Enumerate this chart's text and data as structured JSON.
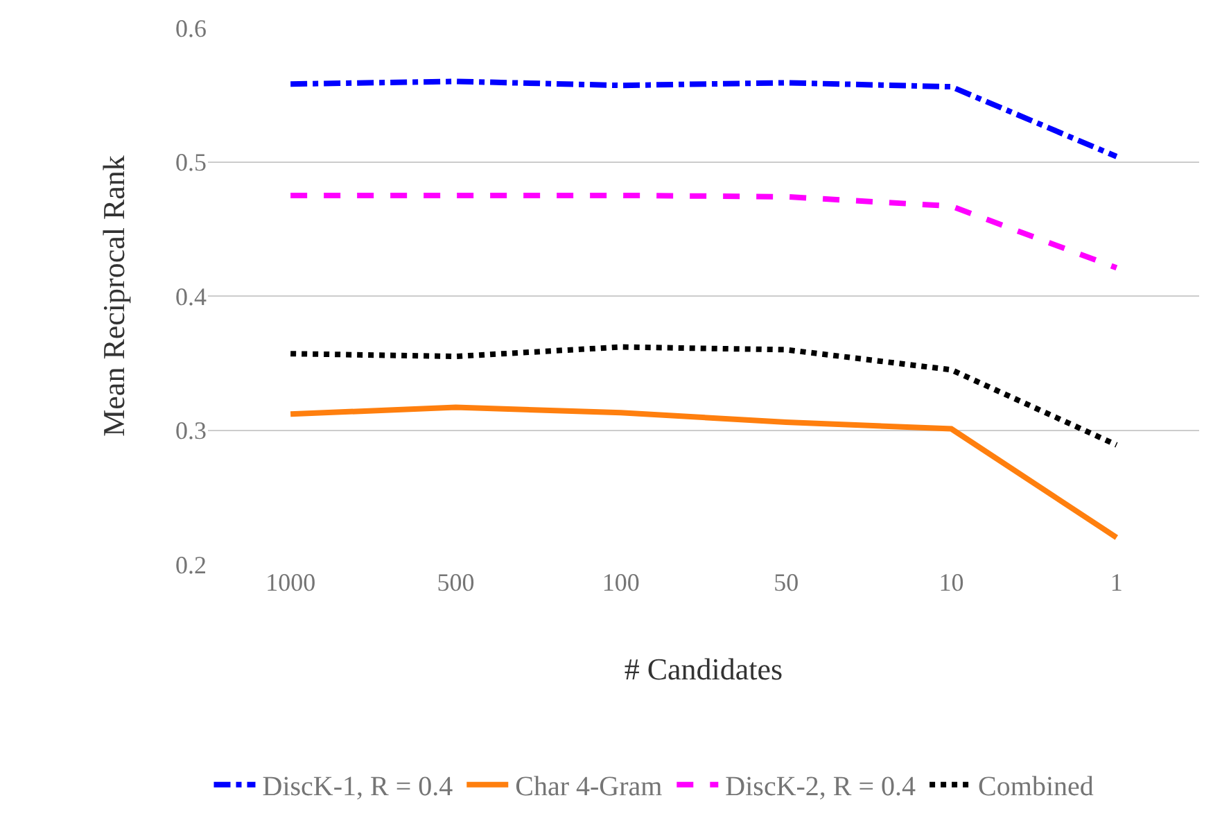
{
  "chart_data": {
    "type": "line",
    "xlabel": "# Candidates",
    "ylabel": "Mean Reciprocal Rank",
    "categories": [
      "1000",
      "500",
      "100",
      "50",
      "10",
      "1"
    ],
    "ylim": [
      0.2,
      0.6
    ],
    "yticks": [
      0.2,
      0.3,
      0.4,
      0.5,
      0.6
    ],
    "grid": "y",
    "legend": "bottom",
    "marker": "none",
    "series": [
      {
        "name": "DiscK-1, R = 0.4",
        "color": "#0000ff",
        "line_style": "dashdot",
        "values": [
          0.558,
          0.56,
          0.557,
          0.559,
          0.556,
          0.504
        ]
      },
      {
        "name": "Char 4-Gram",
        "color": "#ff7f0e",
        "line_style": "solid",
        "values": [
          0.312,
          0.317,
          0.313,
          0.306,
          0.301,
          0.22
        ]
      },
      {
        "name": "DiscK-2, R = 0.4",
        "color": "#ff00ff",
        "line_style": "dashed",
        "values": [
          0.475,
          0.475,
          0.475,
          0.474,
          0.467,
          0.421
        ]
      },
      {
        "name": "Combined",
        "color": "#000000",
        "line_style": "dotted",
        "values": [
          0.357,
          0.355,
          0.362,
          0.36,
          0.345,
          0.289
        ]
      }
    ]
  }
}
